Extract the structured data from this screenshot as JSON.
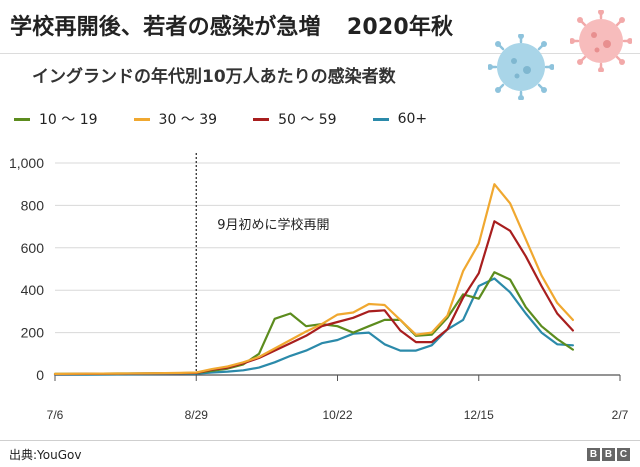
{
  "header": {
    "title": "学校再開後、若者の感染が急増",
    "year": "2020年秋",
    "subtitle": "イングランドの年代別10万人あたりの感染者数"
  },
  "footer": {
    "source": "出典:YouGov",
    "logo": [
      "B",
      "B",
      "C"
    ]
  },
  "chart_data": {
    "type": "line",
    "title": "学校再開後、若者の感染が急増 2020年秋",
    "subtitle": "イングランドの年代別10万人あたりの感染者数",
    "xlabel": "",
    "ylabel": "",
    "x_range": [
      0,
      216
    ],
    "x_ticks": [
      {
        "day": 0,
        "label": "7/6"
      },
      {
        "day": 54,
        "label": "8/29"
      },
      {
        "day": 108,
        "label": "10/22"
      },
      {
        "day": 162,
        "label": "12/15"
      },
      {
        "day": 216,
        "label": "2/7"
      }
    ],
    "ylim": [
      0,
      1000
    ],
    "y_ticks": [
      {
        "value": 0,
        "label": "0"
      },
      {
        "value": 200,
        "label": "200"
      },
      {
        "value": 400,
        "label": "400"
      },
      {
        "value": 600,
        "label": "600"
      },
      {
        "value": 800,
        "label": "800"
      },
      {
        "value": 1000,
        "label": "1,000"
      }
    ],
    "grid": "horizontal",
    "legend_position": "top",
    "annotation": {
      "day": 54,
      "label": "9月初めに学校再開"
    },
    "x_days": [
      0,
      12,
      24,
      36,
      48,
      54,
      60,
      66,
      72,
      78,
      84,
      90,
      96,
      102,
      108,
      114,
      120,
      126,
      132,
      138,
      144,
      150,
      156,
      162,
      168,
      174,
      180,
      186,
      192,
      198,
      204,
      210,
      216
    ],
    "series": [
      {
        "name": "10 〜 19",
        "color": "#5c8c1e",
        "values": [
          5,
          6,
          7,
          8,
          9,
          10,
          20,
          30,
          50,
          100,
          265,
          290,
          230,
          240,
          230,
          200,
          230,
          260,
          260,
          185,
          190,
          270,
          380,
          360,
          485,
          450,
          320,
          230,
          170,
          120,
          null,
          null,
          null
        ]
      },
      {
        "name": "30 〜 39",
        "color": "#f0a830",
        "values": [
          5,
          6,
          7,
          8,
          10,
          12,
          28,
          40,
          60,
          85,
          125,
          165,
          205,
          240,
          285,
          295,
          335,
          330,
          260,
          190,
          200,
          280,
          490,
          620,
          900,
          810,
          640,
          470,
          340,
          260,
          null,
          null,
          null
        ]
      },
      {
        "name": "50 〜 59",
        "color": "#a81e1e",
        "values": [
          4,
          5,
          6,
          7,
          8,
          10,
          25,
          35,
          55,
          80,
          115,
          150,
          185,
          230,
          250,
          270,
          300,
          305,
          210,
          155,
          155,
          215,
          365,
          480,
          725,
          680,
          560,
          420,
          290,
          210,
          null,
          null,
          null
        ]
      },
      {
        "name": "60+",
        "color": "#2b8aaa",
        "values": [
          2,
          2,
          3,
          4,
          5,
          6,
          12,
          16,
          22,
          35,
          60,
          90,
          115,
          150,
          165,
          195,
          200,
          145,
          115,
          115,
          140,
          215,
          260,
          420,
          455,
          390,
          290,
          200,
          145,
          140,
          null,
          null,
          null
        ]
      }
    ]
  }
}
